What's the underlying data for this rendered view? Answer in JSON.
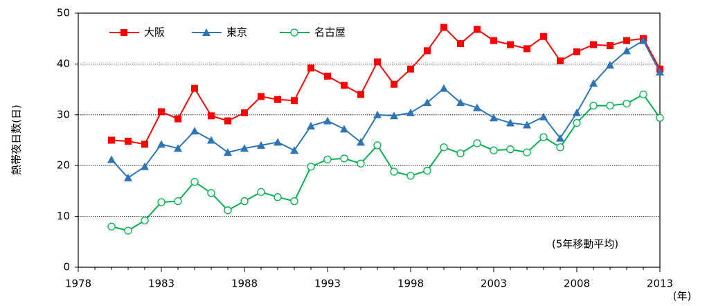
{
  "chart_data": {
    "type": "line",
    "y_label": "熱帯夜日数(日)",
    "x_label": "(年)",
    "annotation": "(5年移動平均)",
    "x": [
      1980,
      1981,
      1982,
      1983,
      1984,
      1985,
      1986,
      1987,
      1988,
      1989,
      1990,
      1991,
      1992,
      1993,
      1994,
      1995,
      1996,
      1997,
      1998,
      1999,
      2000,
      2001,
      2002,
      2003,
      2004,
      2005,
      2006,
      2007,
      2008,
      2009,
      2010,
      2011,
      2012,
      2013
    ],
    "series": [
      {
        "name": "大阪",
        "color": "#ff0000",
        "marker": "square",
        "values": [
          25.0,
          24.8,
          24.2,
          30.6,
          29.2,
          35.2,
          29.8,
          28.8,
          30.4,
          33.6,
          33.0,
          32.8,
          39.2,
          37.6,
          35.8,
          34.0,
          40.4,
          36.0,
          39.0,
          42.6,
          47.2,
          44.0,
          46.8,
          44.6,
          43.8,
          43.0,
          45.4,
          40.6,
          42.4,
          43.8,
          43.6,
          44.6,
          45.0,
          39.0
        ]
      },
      {
        "name": "東京",
        "color": "#2e75b6",
        "marker": "triangle",
        "values": [
          21.2,
          17.6,
          19.8,
          24.2,
          23.4,
          26.8,
          25.0,
          22.6,
          23.4,
          24.0,
          24.6,
          23.0,
          27.8,
          28.8,
          27.2,
          24.6,
          30.0,
          29.8,
          30.4,
          32.4,
          35.2,
          32.4,
          31.4,
          29.4,
          28.4,
          28.0,
          29.6,
          25.4,
          30.4,
          36.2,
          39.8,
          42.6,
          44.6,
          38.4
        ]
      },
      {
        "name": "名古屋",
        "color": "#00b050",
        "marker": "circle",
        "values": [
          8.0,
          7.2,
          9.2,
          12.8,
          13.0,
          16.8,
          14.6,
          11.2,
          13.0,
          14.8,
          13.8,
          13.0,
          19.8,
          21.2,
          21.4,
          20.4,
          24.0,
          18.8,
          18.0,
          19.0,
          23.6,
          22.4,
          24.4,
          23.0,
          23.2,
          22.6,
          25.6,
          23.6,
          28.4,
          31.8,
          31.8,
          32.2,
          34.0,
          29.4
        ]
      }
    ],
    "xlim": [
      1978,
      2013
    ],
    "xticks": [
      1978,
      1983,
      1988,
      1993,
      1998,
      2003,
      2008,
      2013
    ],
    "ylim": [
      0,
      50
    ],
    "yticks": [
      0,
      10,
      20,
      30,
      40,
      50
    ],
    "grid": true,
    "legend": "top-left"
  }
}
